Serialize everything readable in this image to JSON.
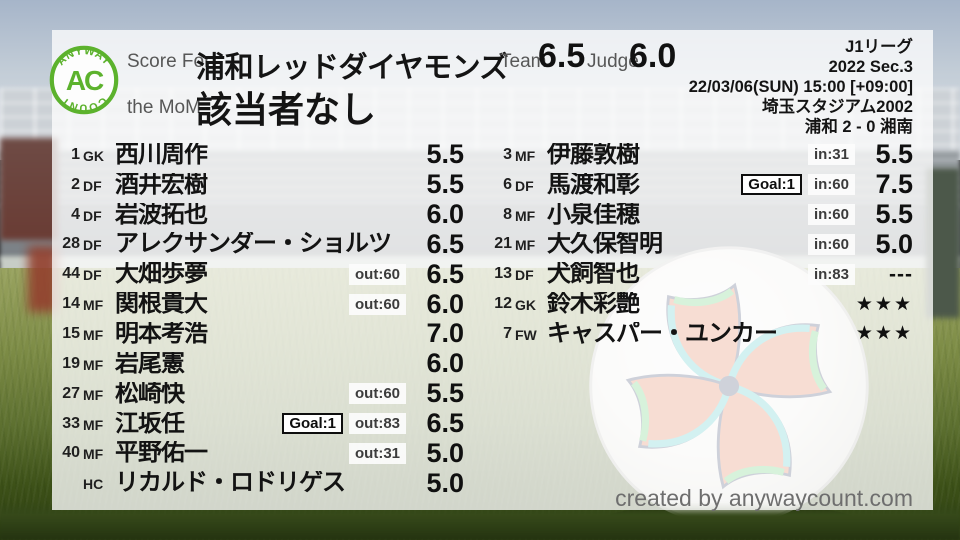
{
  "brand": {
    "logo_top": "ANYWAY",
    "logo_center": "AC",
    "logo_bottom": "COUNT",
    "accent_green": "#5cb22d"
  },
  "header": {
    "score_for_label": "Score For",
    "team_name": "浦和レッドダイヤモンズ",
    "mom_label": "the MoM",
    "mom_value": "該当者なし",
    "team_label": "Team",
    "team_score": "6.5",
    "judge_label": "Judge",
    "judge_score": "6.0"
  },
  "match_info": {
    "league": "J1リーグ",
    "season": "2022 Sec.3",
    "datetime": "22/03/06(SUN) 15:00 [+09:00]",
    "venue": "埼玉スタジアム2002",
    "result": "浦和 2 - 0 湘南"
  },
  "players": {
    "left": [
      {
        "num": "1",
        "pos": "GK",
        "name": "西川周作",
        "goal": "",
        "sub": "",
        "rating": "5.5",
        "rating_type": "score"
      },
      {
        "num": "2",
        "pos": "DF",
        "name": "酒井宏樹",
        "goal": "",
        "sub": "",
        "rating": "5.5",
        "rating_type": "score"
      },
      {
        "num": "4",
        "pos": "DF",
        "name": "岩波拓也",
        "goal": "",
        "sub": "",
        "rating": "6.0",
        "rating_type": "score"
      },
      {
        "num": "28",
        "pos": "DF",
        "name": "アレクサンダー・ショルツ",
        "goal": "",
        "sub": "",
        "rating": "6.5",
        "rating_type": "score"
      },
      {
        "num": "44",
        "pos": "DF",
        "name": "大畑歩夢",
        "goal": "",
        "sub": "out:60",
        "rating": "6.5",
        "rating_type": "score"
      },
      {
        "num": "14",
        "pos": "MF",
        "name": "関根貴大",
        "goal": "",
        "sub": "out:60",
        "rating": "6.0",
        "rating_type": "score"
      },
      {
        "num": "15",
        "pos": "MF",
        "name": "明本考浩",
        "goal": "",
        "sub": "",
        "rating": "7.0",
        "rating_type": "score"
      },
      {
        "num": "19",
        "pos": "MF",
        "name": "岩尾憲",
        "goal": "",
        "sub": "",
        "rating": "6.0",
        "rating_type": "score"
      },
      {
        "num": "27",
        "pos": "MF",
        "name": "松崎快",
        "goal": "",
        "sub": "out:60",
        "rating": "5.5",
        "rating_type": "score"
      },
      {
        "num": "33",
        "pos": "MF",
        "name": "江坂任",
        "goal": "Goal:1",
        "sub": "out:83",
        "rating": "6.5",
        "rating_type": "score"
      },
      {
        "num": "40",
        "pos": "MF",
        "name": "平野佑一",
        "goal": "",
        "sub": "out:31",
        "rating": "5.0",
        "rating_type": "score"
      },
      {
        "num": "",
        "pos": "HC",
        "name": "リカルド・ロドリゲス",
        "goal": "",
        "sub": "",
        "rating": "5.0",
        "rating_type": "score"
      }
    ],
    "right": [
      {
        "num": "3",
        "pos": "MF",
        "name": "伊藤敦樹",
        "goal": "",
        "sub": "in:31",
        "rating": "5.5",
        "rating_type": "score"
      },
      {
        "num": "6",
        "pos": "DF",
        "name": "馬渡和彰",
        "goal": "Goal:1",
        "sub": "in:60",
        "rating": "7.5",
        "rating_type": "score"
      },
      {
        "num": "8",
        "pos": "MF",
        "name": "小泉佳穂",
        "goal": "",
        "sub": "in:60",
        "rating": "5.5",
        "rating_type": "score"
      },
      {
        "num": "21",
        "pos": "MF",
        "name": "大久保智明",
        "goal": "",
        "sub": "in:60",
        "rating": "5.0",
        "rating_type": "score"
      },
      {
        "num": "13",
        "pos": "DF",
        "name": "犬飼智也",
        "goal": "",
        "sub": "in:83",
        "rating": "---",
        "rating_type": "dashes"
      },
      {
        "num": "12",
        "pos": "GK",
        "name": "鈴木彩艶",
        "goal": "",
        "sub": "",
        "rating": "★★★",
        "rating_type": "stars"
      },
      {
        "num": "7",
        "pos": "FW",
        "name": "キャスパー・ユンカー",
        "goal": "",
        "sub": "",
        "rating": "★★★",
        "rating_type": "stars"
      }
    ]
  },
  "footer": {
    "credit": "created by anywaycount.com"
  }
}
